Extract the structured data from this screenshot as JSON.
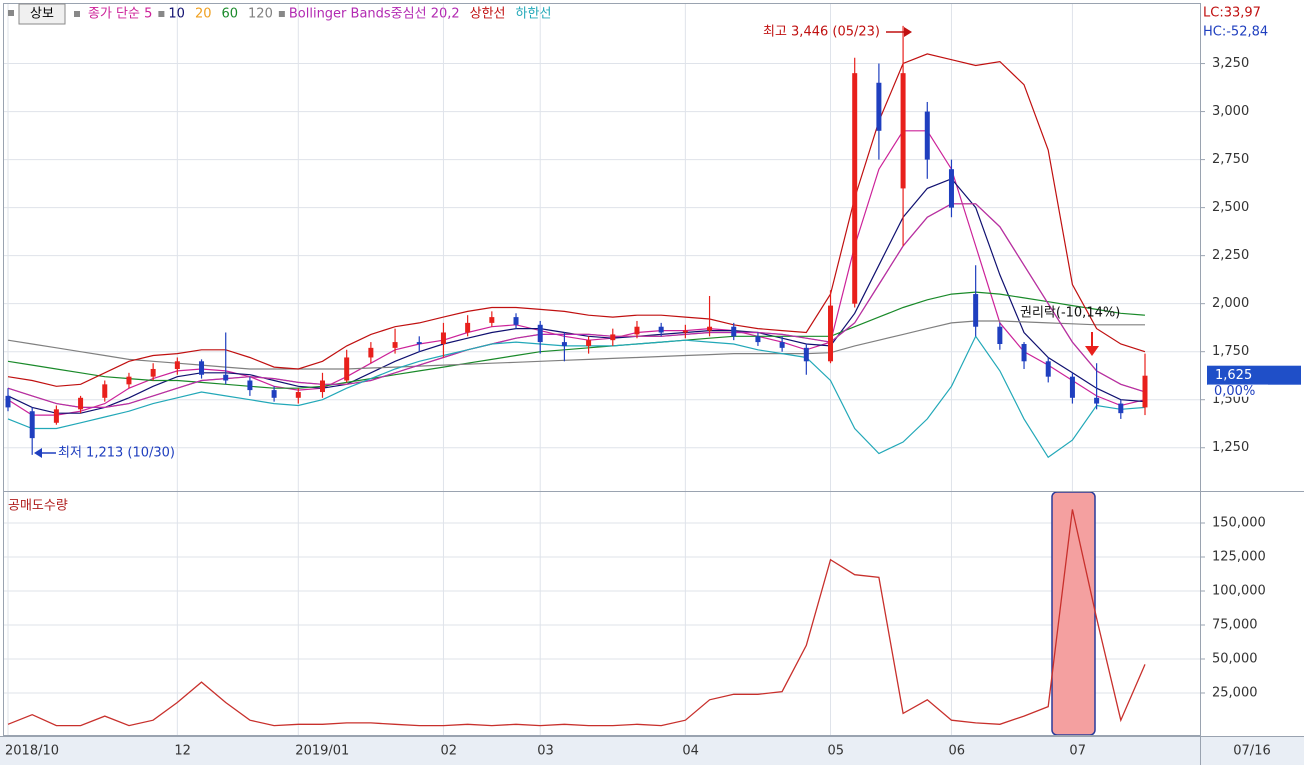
{
  "toolbar_button": "상보",
  "chart_data": [
    {
      "type": "candlestick",
      "open": [
        1520,
        1440,
        1380,
        1450,
        1510,
        1580,
        1620,
        1660,
        1700,
        1630,
        1600,
        1550,
        1510,
        1540,
        1600,
        1720,
        1770,
        1800,
        1790,
        1850,
        1900,
        1930,
        1890,
        1800,
        1780,
        1810,
        1840,
        1880,
        1850,
        1860,
        1880,
        1830,
        1800,
        1770,
        1700,
        2000,
        3150,
        2600,
        3000,
        2700,
        2050,
        1880,
        1790,
        1700,
        1620,
        1510,
        1480,
        1460
      ],
      "high": [
        1560,
        1460,
        1470,
        1520,
        1600,
        1640,
        1690,
        1720,
        1710,
        1850,
        1620,
        1570,
        1560,
        1640,
        1760,
        1800,
        1870,
        1830,
        1900,
        1940,
        1960,
        1950,
        1910,
        1850,
        1830,
        1870,
        1910,
        1900,
        1890,
        2040,
        1900,
        1850,
        1830,
        1790,
        2070,
        3280,
        3250,
        3446,
        3050,
        2750,
        2200,
        1900,
        1800,
        1720,
        1640,
        1690,
        1500,
        1740
      ],
      "low": [
        1440,
        1213,
        1370,
        1430,
        1490,
        1560,
        1600,
        1630,
        1610,
        1580,
        1520,
        1490,
        1480,
        1510,
        1590,
        1690,
        1740,
        1750,
        1720,
        1830,
        1880,
        1870,
        1740,
        1700,
        1740,
        1780,
        1820,
        1830,
        1820,
        1830,
        1810,
        1780,
        1750,
        1630,
        1690,
        1980,
        2750,
        2300,
        2650,
        2450,
        1830,
        1760,
        1660,
        1590,
        1480,
        1450,
        1400,
        1420
      ],
      "close": [
        1460,
        1300,
        1450,
        1510,
        1580,
        1620,
        1660,
        1700,
        1630,
        1600,
        1550,
        1510,
        1540,
        1600,
        1720,
        1770,
        1800,
        1790,
        1850,
        1900,
        1930,
        1890,
        1800,
        1780,
        1810,
        1840,
        1880,
        1850,
        1860,
        1880,
        1830,
        1800,
        1770,
        1700,
        1990,
        3200,
        2900,
        3200,
        2750,
        2500,
        1880,
        1790,
        1700,
        1620,
        1510,
        1480,
        1430,
        1625
      ],
      "up_color": "#e8201c",
      "down_color": "#1f3fbf",
      "series": [
        {
          "name": "종가 단순 5",
          "color": "#cc2299",
          "values": [
            1500,
            1420,
            1420,
            1440,
            1480,
            1560,
            1610,
            1650,
            1660,
            1650,
            1620,
            1570,
            1550,
            1560,
            1620,
            1690,
            1760,
            1790,
            1810,
            1850,
            1880,
            1890,
            1860,
            1830,
            1810,
            1820,
            1850,
            1860,
            1860,
            1870,
            1860,
            1830,
            1800,
            1760,
            1800,
            2300,
            2700,
            2900,
            2900,
            2700,
            2300,
            1900,
            1750,
            1680,
            1600,
            1520,
            1470,
            1500
          ]
        },
        {
          "name": "10",
          "color": "#101070",
          "values": [
            1520,
            1460,
            1430,
            1430,
            1460,
            1510,
            1570,
            1620,
            1640,
            1640,
            1630,
            1600,
            1570,
            1560,
            1580,
            1640,
            1700,
            1750,
            1790,
            1820,
            1850,
            1870,
            1870,
            1850,
            1830,
            1820,
            1830,
            1840,
            1850,
            1860,
            1860,
            1850,
            1820,
            1790,
            1780,
            1950,
            2200,
            2450,
            2600,
            2650,
            2500,
            2150,
            1850,
            1720,
            1640,
            1560,
            1500,
            1490
          ]
        },
        {
          "name": "20",
          "color": "#f0a020",
          "values": [
            1560,
            1520,
            1480,
            1460,
            1460,
            1480,
            1520,
            1560,
            1600,
            1610,
            1620,
            1610,
            1590,
            1580,
            1580,
            1600,
            1640,
            1680,
            1720,
            1760,
            1790,
            1820,
            1840,
            1840,
            1840,
            1830,
            1830,
            1830,
            1840,
            1850,
            1850,
            1850,
            1840,
            1820,
            1800,
            1900,
            2100,
            2300,
            2450,
            2520,
            2520,
            2400,
            2200,
            2000,
            1800,
            1650,
            1580,
            1540
          ]
        },
        {
          "name": "60",
          "color": "#1a8a2a",
          "values": [
            1700,
            1680,
            1660,
            1640,
            1620,
            1610,
            1600,
            1600,
            1590,
            1580,
            1570,
            1560,
            1560,
            1570,
            1590,
            1610,
            1630,
            1650,
            1670,
            1690,
            1710,
            1730,
            1750,
            1760,
            1770,
            1780,
            1790,
            1800,
            1810,
            1820,
            1830,
            1830,
            1830,
            1830,
            1830,
            1880,
            1930,
            1980,
            2020,
            2050,
            2060,
            2050,
            2030,
            2010,
            1990,
            1970,
            1950,
            1940
          ]
        },
        {
          "name": "120",
          "color": "#808080",
          "values": [
            1810,
            1790,
            1770,
            1750,
            1730,
            1710,
            1700,
            1690,
            1680,
            1670,
            1660,
            1660,
            1660,
            1660,
            1660,
            1665,
            1670,
            1675,
            1680,
            1685,
            1690,
            1695,
            1700,
            1705,
            1710,
            1715,
            1720,
            1725,
            1730,
            1735,
            1740,
            1740,
            1740,
            1740,
            1745,
            1780,
            1810,
            1840,
            1870,
            1900,
            1910,
            1910,
            1905,
            1900,
            1895,
            1890,
            1890,
            1890
          ]
        },
        {
          "name": "Bollinger Bands중심선 20,2",
          "color": "#b22ab2",
          "values": [
            1560,
            1520,
            1480,
            1460,
            1460,
            1480,
            1520,
            1560,
            1600,
            1610,
            1620,
            1610,
            1590,
            1580,
            1580,
            1600,
            1640,
            1680,
            1720,
            1760,
            1790,
            1820,
            1840,
            1840,
            1840,
            1830,
            1830,
            1830,
            1840,
            1850,
            1850,
            1850,
            1840,
            1820,
            1800,
            1900,
            2100,
            2300,
            2450,
            2520,
            2520,
            2400,
            2200,
            2000,
            1800,
            1650,
            1580,
            1540
          ]
        },
        {
          "name": "상한선",
          "color": "#c01010",
          "values": [
            1620,
            1600,
            1570,
            1580,
            1640,
            1700,
            1730,
            1740,
            1760,
            1760,
            1720,
            1670,
            1660,
            1700,
            1780,
            1840,
            1880,
            1900,
            1930,
            1960,
            1980,
            1980,
            1970,
            1960,
            1940,
            1930,
            1940,
            1940,
            1930,
            1920,
            1890,
            1870,
            1860,
            1850,
            2050,
            2550,
            2950,
            3250,
            3300,
            3270,
            3240,
            3260,
            3140,
            2800,
            2100,
            1870,
            1790,
            1750
          ]
        },
        {
          "name": "하한선",
          "color": "#22a8b8",
          "values": [
            1400,
            1350,
            1350,
            1380,
            1410,
            1440,
            1480,
            1510,
            1540,
            1520,
            1500,
            1480,
            1470,
            1500,
            1560,
            1610,
            1660,
            1700,
            1730,
            1760,
            1790,
            1800,
            1790,
            1780,
            1780,
            1780,
            1790,
            1800,
            1810,
            1800,
            1790,
            1760,
            1740,
            1720,
            1600,
            1350,
            1220,
            1280,
            1400,
            1570,
            1830,
            1650,
            1400,
            1200,
            1290,
            1470,
            1450,
            1460
          ]
        }
      ],
      "ylim": [
        1030,
        3560
      ],
      "yticks": [
        {
          "value": 1250,
          "label": "1,250"
        },
        {
          "value": 1500,
          "label": "1,500"
        },
        {
          "value": 1750,
          "label": "1,750"
        },
        {
          "value": 2000,
          "label": "2,000"
        },
        {
          "value": 2250,
          "label": "2,250"
        },
        {
          "value": 2500,
          "label": "2,500"
        },
        {
          "value": 2750,
          "label": "2,750"
        },
        {
          "value": 3000,
          "label": "3,000"
        },
        {
          "value": 3250,
          "label": "3,250"
        }
      ],
      "grid": true,
      "current_price": {
        "value": 1625,
        "label": "1,625"
      },
      "change_label": "0,00%",
      "indicators": [
        "LC:33,97",
        "HC:-52,84"
      ],
      "annotations": [
        "최고 3,446 (05/23)",
        "최저 1,213 (10/30)",
        "권리락(-10,14%)"
      ]
    },
    {
      "type": "line",
      "title": "공매도수량",
      "categories": [
        "2018/10",
        null,
        null,
        null,
        null,
        null,
        null,
        "12",
        null,
        null,
        null,
        null,
        "2019/01",
        null,
        null,
        null,
        null,
        null,
        "02",
        null,
        null,
        null,
        "03",
        null,
        null,
        null,
        null,
        null,
        "04",
        null,
        null,
        null,
        null,
        null,
        "05",
        null,
        null,
        null,
        null,
        "06",
        null,
        null,
        null,
        null,
        "07",
        null,
        null,
        null
      ],
      "last_date": "07/16",
      "color": "#c8302c",
      "values": [
        2000,
        9000,
        1000,
        1000,
        8000,
        1000,
        5000,
        18000,
        33000,
        18000,
        5000,
        1000,
        2000,
        2000,
        3000,
        3000,
        2000,
        1000,
        1000,
        2000,
        1000,
        2000,
        1000,
        2000,
        1000,
        1000,
        2000,
        1000,
        5000,
        20000,
        24000,
        24000,
        26000,
        60000,
        123000,
        112000,
        110000,
        10000,
        20000,
        5000,
        3000,
        2000,
        8000,
        15000,
        160000,
        80000,
        5000,
        46000
      ],
      "ylim": [
        -5900,
        172800
      ],
      "yticks": [
        {
          "value": 25000,
          "label": "25,000"
        },
        {
          "value": 50000,
          "label": "50,000"
        },
        {
          "value": 75000,
          "label": "75,000"
        },
        {
          "value": 100000,
          "label": "100,000"
        },
        {
          "value": 125000,
          "label": "125,000"
        },
        {
          "value": 150000,
          "label": "150,000"
        }
      ],
      "grid": true
    }
  ]
}
